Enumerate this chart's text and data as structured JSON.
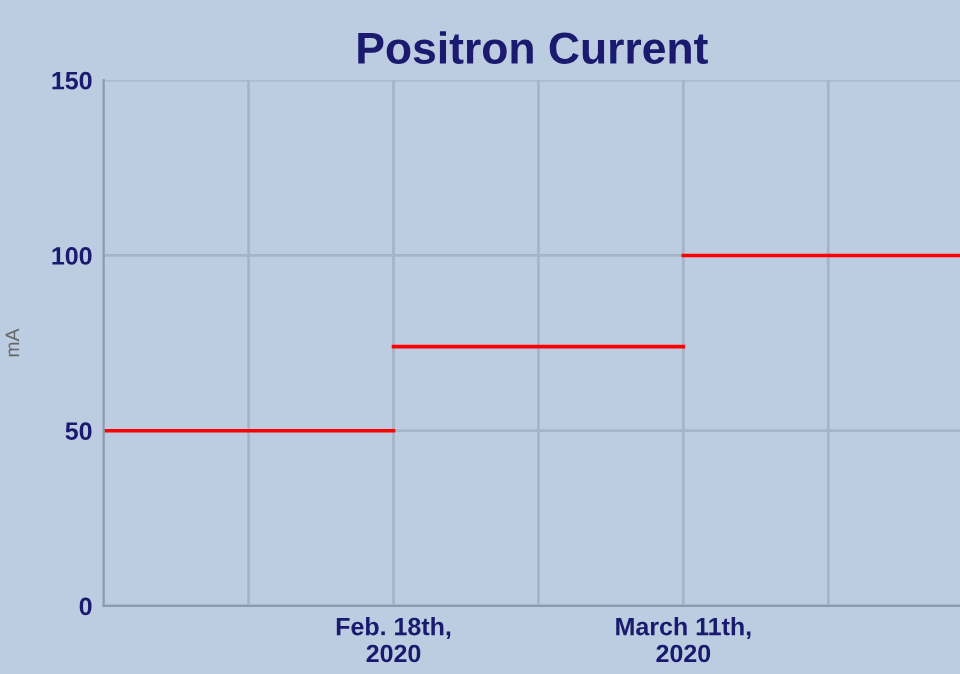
{
  "chart_data": {
    "type": "line",
    "title": "Positron Current",
    "ylabel": "mA",
    "series": [
      {
        "color": "#ff0000",
        "x": [
          "2020-01-27",
          "2020-02-18"
        ],
        "values": [
          50,
          50
        ]
      },
      {
        "color": "#ff0000",
        "x": [
          "2020-02-18",
          "2020-03-11"
        ],
        "values": [
          74,
          74
        ]
      },
      {
        "color": "#ff0000",
        "x": [
          "2020-03-11",
          "2020-04-01"
        ],
        "values": [
          100,
          100
        ]
      }
    ],
    "xlim": [
      "2020-01-27",
      "2020-04-01"
    ],
    "xticks": [
      {
        "value": "2020-02-07",
        "label": null
      },
      {
        "value": "2020-02-18",
        "label": "Feb. 18th,\n2020"
      },
      {
        "value": "2020-02-29",
        "label": null
      },
      {
        "value": "2020-03-11",
        "label": "March 11th,\n2020"
      },
      {
        "value": "2020-03-22",
        "label": null
      }
    ],
    "ylim": [
      0,
      150
    ],
    "yticks": [
      0,
      50,
      100,
      150
    ],
    "grid": true,
    "legend": false,
    "marker": "none",
    "line_style": "solid"
  }
}
